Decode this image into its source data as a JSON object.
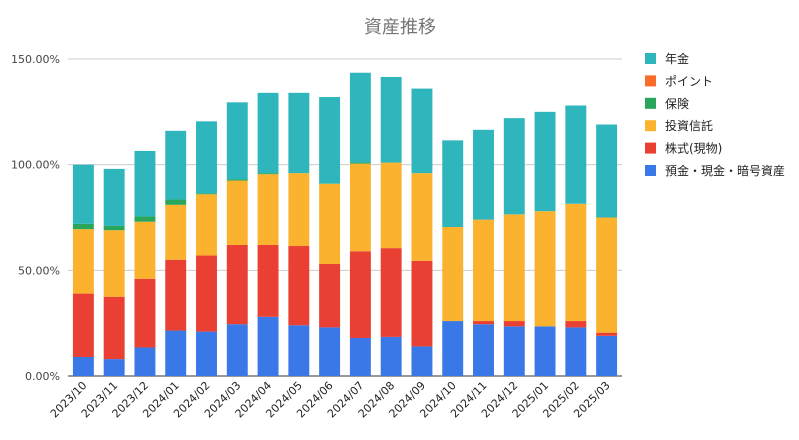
{
  "chart_data": {
    "type": "bar",
    "stacked": true,
    "title": "資産推移",
    "xlabel": "",
    "ylabel": "",
    "ylim": [
      0,
      150
    ],
    "y_ticks": [
      0,
      50,
      100,
      150
    ],
    "y_tick_labels": [
      "0.00%",
      "50.00%",
      "100.00%",
      "150.00%"
    ],
    "grid": true,
    "legend_position": "right",
    "categories": [
      "2023/10",
      "2023/11",
      "2023/12",
      "2024/01",
      "2024/02",
      "2024/03",
      "2024/04",
      "2024/05",
      "2024/06",
      "2024/07",
      "2024/08",
      "2024/09",
      "2024/10",
      "2024/11",
      "2024/12",
      "2025/01",
      "2025/02",
      "2025/03"
    ],
    "series": [
      {
        "name": "預金・現金・暗号資産",
        "color": "#3a78e7",
        "values": [
          9,
          8,
          13.5,
          21.5,
          21,
          24.5,
          28,
          24,
          23,
          18,
          18.5,
          14,
          26,
          24.5,
          23.5,
          23.5,
          23,
          19
        ]
      },
      {
        "name": "株式(現物)",
        "color": "#ea3f33",
        "values": [
          30,
          29.5,
          32.5,
          33.5,
          36,
          37.5,
          34,
          37.5,
          30,
          41,
          42,
          40.5,
          0,
          1.5,
          2.5,
          0,
          3,
          1.5
        ]
      },
      {
        "name": "投資信託",
        "color": "#fbb22e",
        "values": [
          30.5,
          31.5,
          27,
          26,
          29,
          30.5,
          33.5,
          34.5,
          38,
          41.5,
          40.5,
          41.5,
          44.5,
          48,
          50.5,
          54.5,
          55.5,
          54.5
        ]
      },
      {
        "name": "保険",
        "color": "#2aa65c",
        "values": [
          2.5,
          2,
          2.5,
          2.5,
          0.5,
          0.5,
          0.5,
          0,
          0,
          0.5,
          0,
          0,
          0,
          0,
          0,
          0,
          0,
          0
        ]
      },
      {
        "name": "ポイント",
        "color": "#fb6c29",
        "values": [
          0,
          0,
          0,
          0,
          0,
          0,
          0,
          0,
          0,
          0,
          0,
          0,
          0,
          0,
          0,
          0,
          0,
          0
        ]
      },
      {
        "name": "年金",
        "color": "#2fb6bd",
        "values": [
          28,
          27,
          31,
          32.5,
          34,
          36.5,
          38,
          38,
          41,
          42.5,
          40.5,
          40,
          41,
          42.5,
          45.5,
          47,
          46.5,
          44
        ]
      }
    ],
    "legend_order": [
      "年金",
      "ポイント",
      "保険",
      "投資信託",
      "株式(現物)",
      "預金・現金・暗号資産"
    ]
  }
}
